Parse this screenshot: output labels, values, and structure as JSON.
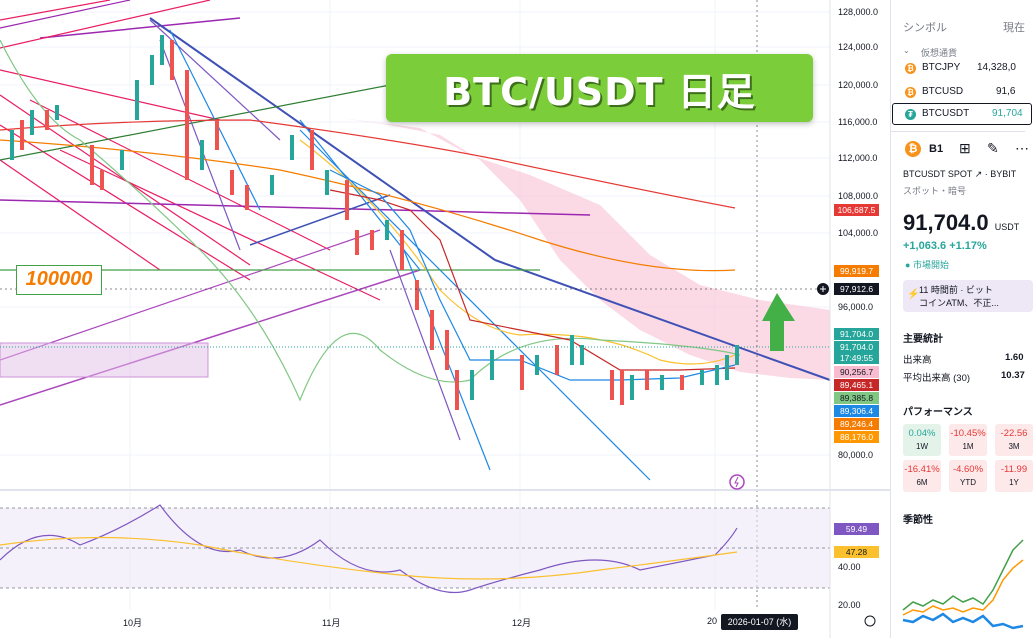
{
  "title_banner": "BTC/USDT 日足",
  "annotation_label": "100000",
  "price_axis": [
    "128,000.0",
    "124,000.0",
    "120,000.0",
    "116,000.0",
    "112,000.0",
    "108,000.0",
    "104,000.0",
    "96,000.0",
    "80,000.0"
  ],
  "price_tags": [
    {
      "text": "106,687.5",
      "color": "#e53935"
    },
    {
      "text": "99,919.7",
      "color": "#f57c00"
    },
    {
      "text": "97,912.6",
      "color": "#131722"
    },
    {
      "text": "91,704.0",
      "color": "#26a69a"
    },
    {
      "text": "91,704.0",
      "color": "#26a69a"
    },
    {
      "text": "17:49:55",
      "color": "#26a69a"
    },
    {
      "text": "90,256.7",
      "color": "#f8bbd0"
    },
    {
      "text": "89,465.1",
      "color": "#c62828"
    },
    {
      "text": "89,385.8",
      "color": "#81c784"
    },
    {
      "text": "89,306.4",
      "color": "#1e88e5"
    },
    {
      "text": "89,246.4",
      "color": "#f57c00"
    },
    {
      "text": "88,176.0",
      "color": "#ff9800"
    }
  ],
  "rsi_axis": {
    "r59": "59.49",
    "r47": "47.28",
    "r40": "40.00",
    "r20": "20.00"
  },
  "date_axis": [
    "10月",
    "11月",
    "12月",
    "20"
  ],
  "date_tooltip": "2026-01-07 (水)",
  "sidebar": {
    "header_symbol": "シンボル",
    "header_price": "現在",
    "group": "仮想通貨",
    "watchlist": [
      {
        "symbol": "BTCJPY",
        "price": "14,328,0"
      },
      {
        "symbol": "BTCUSD",
        "price": "91,6"
      },
      {
        "symbol": "BTCUSDT",
        "price": "91,704"
      }
    ],
    "detail_code": "B1",
    "exchange": "BTCUSDT SPOT",
    "exchange_src": "BYBIT",
    "category": "スポット・暗号",
    "last_price": "91,704.0",
    "currency": "USDT",
    "change": "+1,063.6",
    "change_pct": "+1.17%",
    "market_status": "市場開始",
    "news_time": "11 時間前",
    "news_text_1": "ビット",
    "news_text_2": "コインATM、不正...",
    "key_stats_title": "主要統計",
    "volume_label": "出来高",
    "volume_value": "1.60",
    "avg_volume_label": "平均出来高 (30)",
    "avg_volume_value": "10.37",
    "performance_title": "パフォーマンス",
    "performance": [
      {
        "value": "0.04%",
        "period": "1W"
      },
      {
        "value": "-10.45%",
        "period": "1M"
      },
      {
        "value": "-22.56",
        "period": "3M"
      },
      {
        "value": "-16.41%",
        "period": "6M"
      },
      {
        "value": "-4.60%",
        "period": "YTD"
      },
      {
        "value": "-11.99",
        "period": "1Y"
      }
    ],
    "seasonality_title": "季節性"
  }
}
